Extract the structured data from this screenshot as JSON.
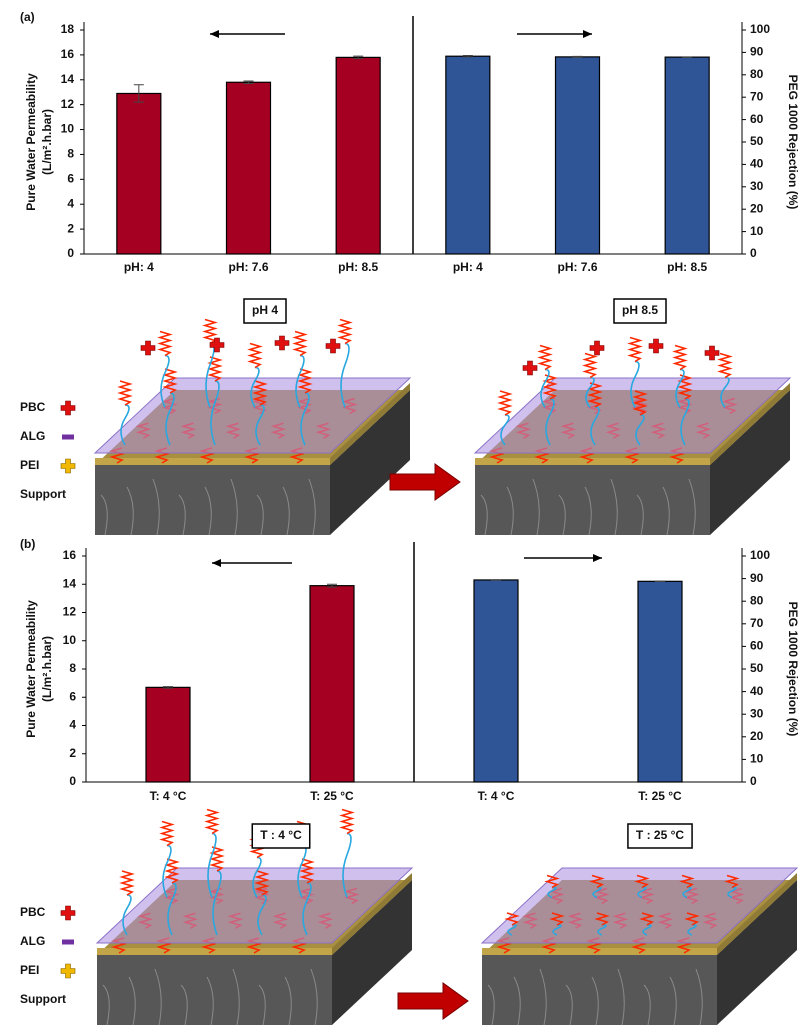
{
  "panels": [
    {
      "label": "(a)",
      "states": [
        "pH 4",
        "pH 8.5"
      ]
    },
    {
      "label": "(b)",
      "states": [
        "T : 4 °C",
        "T : 25 °C"
      ]
    }
  ],
  "legend_labels": [
    "PBC",
    "ALG",
    "PEI",
    "Support"
  ],
  "chart_data": [
    {
      "type": "bar",
      "ylabel": [
        "Pure Water Permeability",
        "(L/m².h.bar)"
      ],
      "y2label": "PEG 1000 Rejection (%)",
      "categories": [
        "pH: 4",
        "pH: 7.6",
        "pH: 8.5",
        "pH: 4",
        "pH: 7.6",
        "pH: 8.5"
      ],
      "series": [
        {
          "color": "#a50021",
          "values": [
            12.9,
            13.8,
            15.8,
            null,
            null,
            null
          ],
          "errors": [
            0.7,
            0.1,
            0.1,
            null,
            null,
            null
          ]
        },
        {
          "color": "#2f5597",
          "axis": "y2",
          "values": [
            null,
            null,
            null,
            88.3,
            88,
            87.9
          ],
          "errors": [
            null,
            null,
            null,
            0.3,
            0.2,
            0.1
          ]
        }
      ],
      "ylim": [
        0,
        18
      ],
      "yticks": [
        0,
        2,
        4,
        6,
        8,
        10,
        12,
        14,
        16,
        18
      ],
      "y2lim": [
        0,
        100
      ],
      "y2ticks": [
        0,
        10,
        20,
        30,
        40,
        50,
        60,
        70,
        80,
        90,
        100
      ]
    },
    {
      "type": "bar",
      "ylabel": [
        "Pure Water Permeability",
        "(L/m².h.bar)"
      ],
      "y2label": "PEG 1000 Rejection (%)",
      "categories": [
        "T: 4 °C",
        "T: 25 °C",
        "T: 4 °C",
        "T: 25 °C"
      ],
      "series": [
        {
          "color": "#a50021",
          "values": [
            6.7,
            13.9,
            null,
            null
          ],
          "errors": [
            0.05,
            0.1,
            null,
            null
          ]
        },
        {
          "color": "#2f5597",
          "axis": "y2",
          "values": [
            null,
            null,
            89.4,
            88.8
          ],
          "errors": [
            null,
            null,
            0.1,
            0.1
          ]
        }
      ],
      "ylim": [
        0,
        16
      ],
      "yticks": [
        0,
        2,
        4,
        6,
        8,
        10,
        12,
        14,
        16
      ],
      "y2lim": [
        0,
        100
      ],
      "y2ticks": [
        0,
        10,
        20,
        30,
        40,
        50,
        60,
        70,
        80,
        90,
        100
      ]
    }
  ]
}
